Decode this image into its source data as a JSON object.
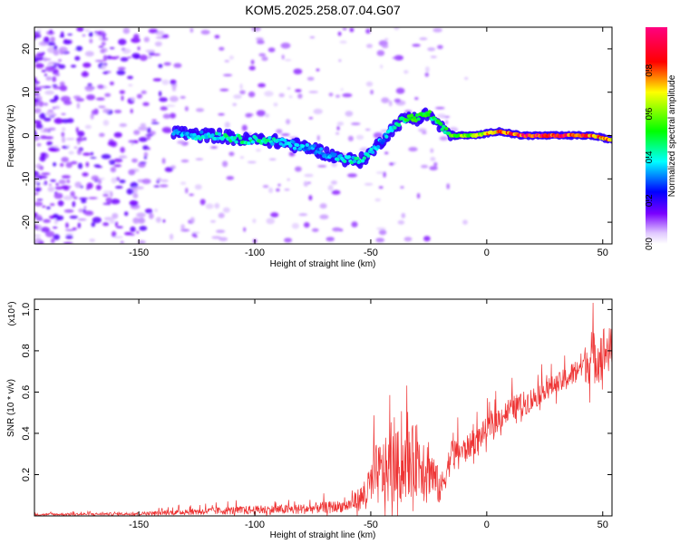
{
  "title": "KOM5.2025.258.07.04.G07",
  "chart_data": [
    {
      "type": "heatmap",
      "title": "KOM5.2025.258.07.04.G07",
      "xlabel": "Height of straight line (km)",
      "ylabel": "Frequency (Hz)",
      "xlim": [
        -195,
        54
      ],
      "ylim": [
        -25,
        25
      ],
      "xticks": [
        -150,
        -100,
        -50,
        0,
        50
      ],
      "yticks": [
        -20,
        -10,
        0,
        10,
        20
      ],
      "colorbar": {
        "label": "Normalized spectral amplitude",
        "range": [
          0,
          1
        ],
        "ticks": [
          0.0,
          0.2,
          0.4,
          0.6,
          0.8
        ],
        "colormap": [
          "#ffffff",
          "#7a00ff",
          "#0000ff",
          "#00ffff",
          "#00ff00",
          "#ffff00",
          "#ff0000",
          "#ff0080"
        ]
      },
      "ridge": {
        "x": [
          -135,
          -125,
          -115,
          -105,
          -95,
          -85,
          -75,
          -65,
          -55,
          -50,
          -45,
          -40,
          -35,
          -30,
          -25,
          -20,
          -15,
          -5,
          5,
          15,
          25,
          35,
          45,
          54
        ],
        "frequency": [
          1,
          0,
          0,
          -1,
          -1,
          -2,
          -3,
          -5,
          -6,
          -4,
          -1,
          2,
          4,
          4,
          5,
          2,
          0,
          0,
          1,
          0,
          0,
          0,
          0,
          -1
        ],
        "amplitude": [
          0.35,
          0.4,
          0.45,
          0.5,
          0.45,
          0.4,
          0.35,
          0.4,
          0.45,
          0.4,
          0.35,
          0.45,
          0.55,
          0.6,
          0.55,
          0.5,
          0.6,
          0.7,
          0.85,
          0.95,
          0.98,
          0.95,
          0.9,
          0.8
        ]
      }
    },
    {
      "type": "line",
      "xlabel": "Height of straight line (km)",
      "ylabel": "SNR (10 * v/v)",
      "y_multiplier": "(x10⁴)",
      "xlim": [
        -195,
        54
      ],
      "ylim": [
        0,
        1.05
      ],
      "xticks": [
        -150,
        -100,
        -50,
        0,
        50
      ],
      "yticks": [
        0.2,
        0.4,
        0.6,
        0.8,
        1.0
      ],
      "ytick_labels": [
        "0.2",
        "0.4",
        "0.6",
        "0.8",
        "1.0"
      ],
      "color": "#ee3333",
      "envelope": {
        "x": [
          -195,
          -150,
          -130,
          -110,
          -80,
          -60,
          -52,
          -48,
          -40,
          -30,
          -25,
          -20,
          -15,
          -10,
          -5,
          0,
          5,
          10,
          15,
          20,
          25,
          30,
          35,
          40,
          45,
          50,
          54
        ],
        "base": [
          0.005,
          0.008,
          0.015,
          0.02,
          0.025,
          0.04,
          0.08,
          0.15,
          0.18,
          0.22,
          0.2,
          0.1,
          0.28,
          0.3,
          0.34,
          0.4,
          0.45,
          0.5,
          0.52,
          0.55,
          0.6,
          0.62,
          0.65,
          0.7,
          0.72,
          0.75,
          0.78
        ],
        "spread": [
          0.01,
          0.015,
          0.03,
          0.04,
          0.05,
          0.06,
          0.15,
          0.3,
          0.35,
          0.35,
          0.3,
          0.15,
          0.15,
          0.12,
          0.12,
          0.12,
          0.12,
          0.12,
          0.12,
          0.12,
          0.1,
          0.1,
          0.12,
          0.12,
          0.25,
          0.28,
          0.2
        ]
      }
    }
  ]
}
